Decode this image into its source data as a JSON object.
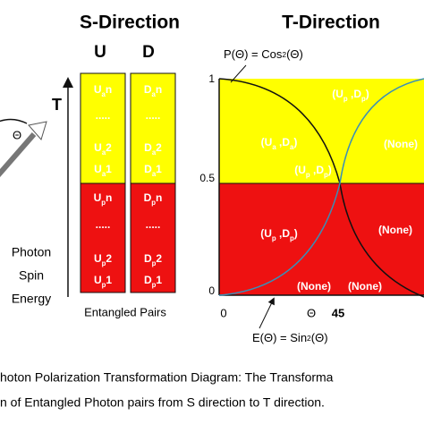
{
  "titles": {
    "s_direction": "S-Direction",
    "t_direction": "T-Direction"
  },
  "columns": {
    "u": "U",
    "d": "D"
  },
  "axis": {
    "t": "T",
    "theta": "Θ",
    "energy": [
      "Photon",
      "Spin",
      "Energy"
    ]
  },
  "u_box": {
    "yellow": [
      [
        "U",
        "a",
        "n"
      ],
      [
        "....."
      ],
      [
        "U",
        "a",
        "2"
      ],
      [
        "U",
        "a",
        "1"
      ]
    ],
    "red": [
      [
        "U",
        "p",
        "n"
      ],
      [
        "....."
      ],
      [
        "U",
        "p",
        "2"
      ],
      [
        "U",
        "p",
        "1"
      ]
    ]
  },
  "d_box": {
    "yellow": [
      [
        "D",
        "a",
        "n"
      ],
      [
        "....."
      ],
      [
        "D",
        "a",
        "2"
      ],
      [
        "D",
        "a",
        "1"
      ]
    ],
    "red": [
      [
        "D",
        "p",
        "n"
      ],
      [
        "....."
      ],
      [
        "D",
        "p",
        "2"
      ],
      [
        "D",
        "p",
        "1"
      ]
    ]
  },
  "entangled_pairs": "Entangled Pairs",
  "plot": {
    "cos_formula": [
      "P(Θ) = Cos",
      "2",
      "(Θ)"
    ],
    "sin_formula": [
      "E(Θ) = Sin",
      "2",
      "(Θ)"
    ],
    "y_labels": [
      "1",
      "0.5",
      "0"
    ],
    "x_labels": [
      "0",
      "Θ",
      "45"
    ],
    "regions": [
      [
        "(U",
        "a",
        " ,D",
        "a",
        ")"
      ],
      [
        "(U",
        "p",
        " ,D",
        "p",
        ")"
      ],
      [
        "(U",
        "p",
        " ,D",
        "p",
        ")"
      ],
      [
        "(None)"
      ],
      [
        "(U",
        "p",
        " ,D",
        "p",
        ")"
      ],
      [
        "(None)"
      ],
      [
        "(None)"
      ],
      [
        "(None)"
      ]
    ]
  },
  "caption": [
    "hoton Polarization Transformation Diagram: The Transforma",
    "n of Entangled Photon pairs from S direction to T direction."
  ]
}
